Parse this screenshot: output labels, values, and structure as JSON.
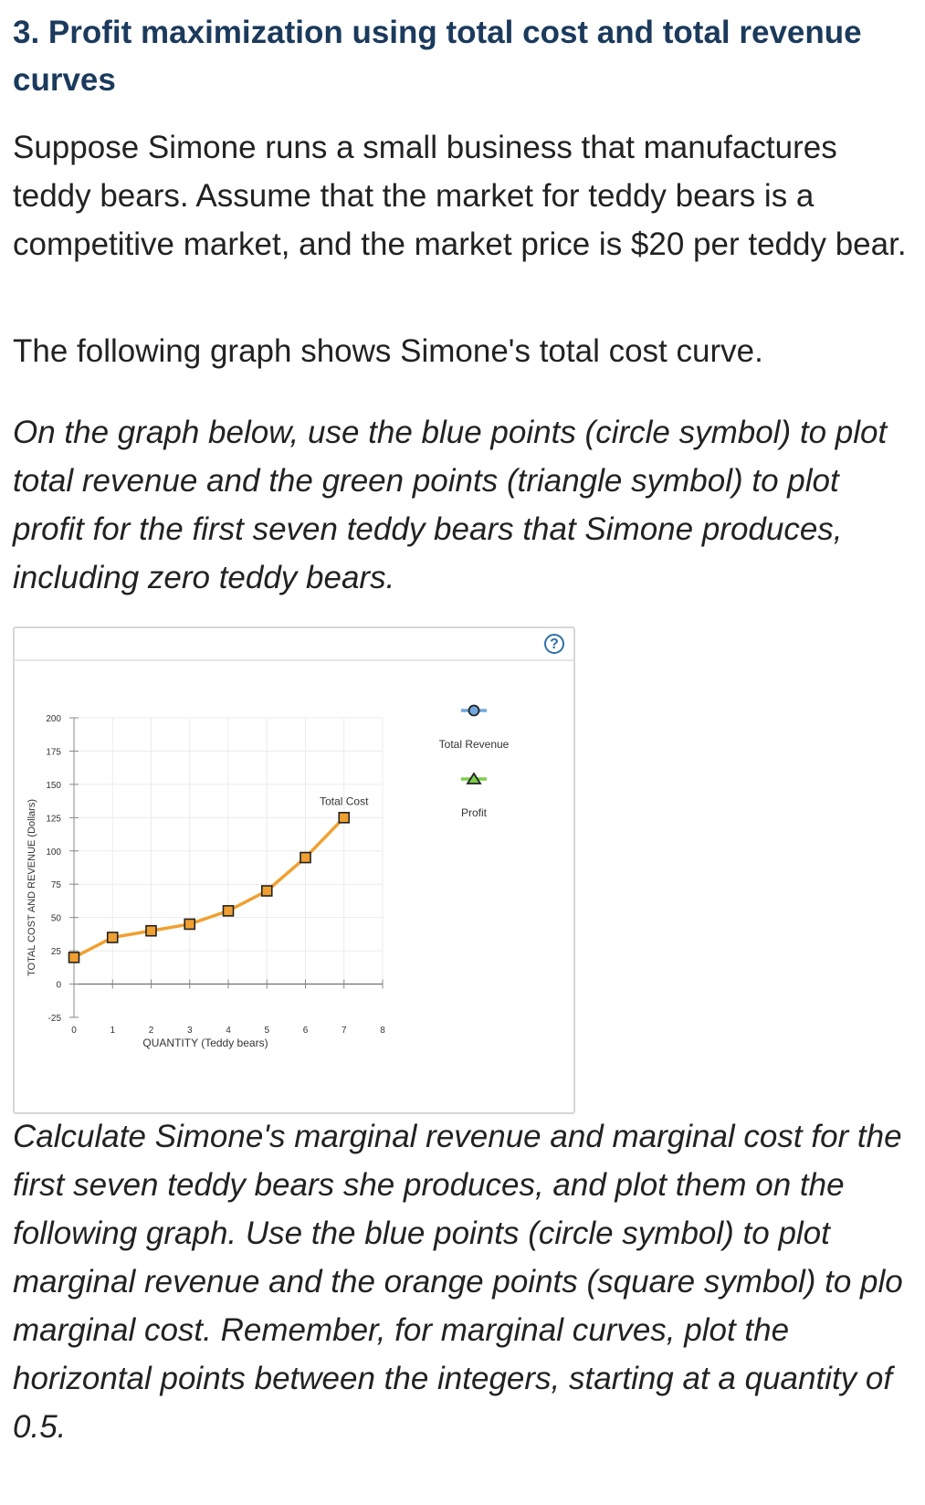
{
  "heading": "3. Profit maximization using total cost and total revenue curves",
  "intro": "Suppose Simone runs a small business that manufactures teddy bears. Assume that the market for teddy bears is a competitive market, and the market price is $20 per teddy bear.",
  "graph_note": "The following graph shows Simone's total cost curve.",
  "instruction_1": "On the graph below, use the blue points (circle symbol) to plot total revenue and the green points (triangle symbol) to plot profit for the first seven teddy bears that Simone produces, including zero teddy bears.",
  "instruction_2": "Calculate Simone's marginal revenue and marginal cost for the first seven teddy bears she produces, and plot them on the following graph. Use the blue points (circle symbol) to plot marginal revenue and the orange points (square symbol) to plo marginal cost. Remember, for marginal curves, plot the horizontal points between the integers, starting at a quantity of 0.5.",
  "help_label": "?",
  "colors": {
    "heading": "#1b3a5c",
    "total_cost": "#f0a030",
    "total_revenue": "#6fa8dc",
    "profit": "#7ccf4a"
  },
  "chart_data": {
    "type": "line",
    "xlabel": "QUANTITY (Teddy bears)",
    "ylabel": "TOTAL COST AND REVENUE (Dollars)",
    "xlim": [
      0,
      8
    ],
    "ylim": [
      -25,
      200
    ],
    "x_ticks": [
      0,
      1,
      2,
      3,
      4,
      5,
      6,
      7,
      8
    ],
    "y_ticks": [
      -25,
      0,
      25,
      50,
      75,
      100,
      125,
      150,
      175,
      200
    ],
    "grid": true,
    "series": [
      {
        "name": "Total Cost",
        "marker": "square",
        "color": "#f0a030",
        "x": [
          0,
          1,
          2,
          3,
          4,
          5,
          6,
          7
        ],
        "y": [
          20,
          35,
          40,
          45,
          55,
          70,
          95,
          125
        ]
      }
    ],
    "legend": [
      {
        "name": "Total Revenue",
        "marker": "circle",
        "color": "#6fa8dc"
      },
      {
        "name": "Profit",
        "marker": "triangle",
        "color": "#7ccf4a"
      }
    ],
    "legend_position": "right"
  }
}
